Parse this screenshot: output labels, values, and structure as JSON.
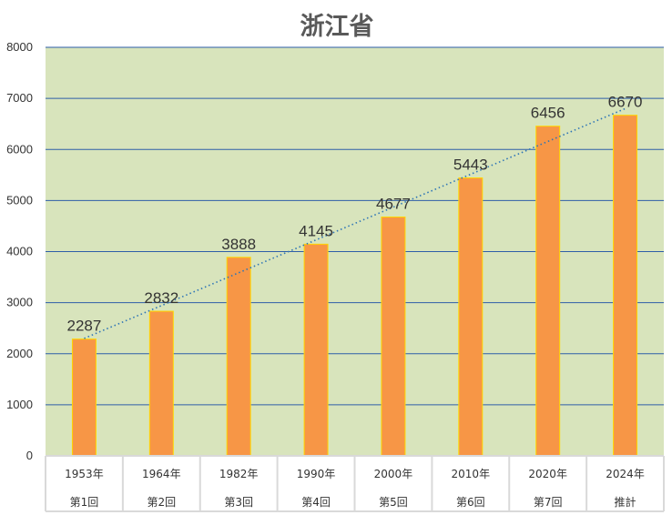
{
  "colors": {
    "plot_background": "#d8e4bc",
    "bar_fill": "#f79646",
    "bar_border": "#ffd700",
    "gridline": "#2e5ea8",
    "trendline": "#2e75b6",
    "axis_cells": "#d9d9d9"
  },
  "chart_data": {
    "type": "bar",
    "title": "浙江省",
    "xlabel": "",
    "ylabel": "",
    "ylim": [
      0,
      8000
    ],
    "yticks": [
      0,
      1000,
      2000,
      3000,
      4000,
      5000,
      6000,
      7000,
      8000
    ],
    "grid": true,
    "legend": "none",
    "trendline": "linear (dotted)",
    "categories": [
      {
        "year": "1953年",
        "census": "第1回"
      },
      {
        "year": "1964年",
        "census": "第2回"
      },
      {
        "year": "1982年",
        "census": "第3回"
      },
      {
        "year": "1990年",
        "census": "第4回"
      },
      {
        "year": "2000年",
        "census": "第5回"
      },
      {
        "year": "2010年",
        "census": "第6回"
      },
      {
        "year": "2020年",
        "census": "第7回"
      },
      {
        "year": "2024年",
        "census": "推計"
      }
    ],
    "values": [
      2287,
      2832,
      3888,
      4145,
      4677,
      5443,
      6456,
      6670
    ],
    "data_labels": [
      "2287",
      "2832",
      "3888",
      "4145",
      "4677",
      "5443",
      "6456",
      "6670"
    ]
  }
}
